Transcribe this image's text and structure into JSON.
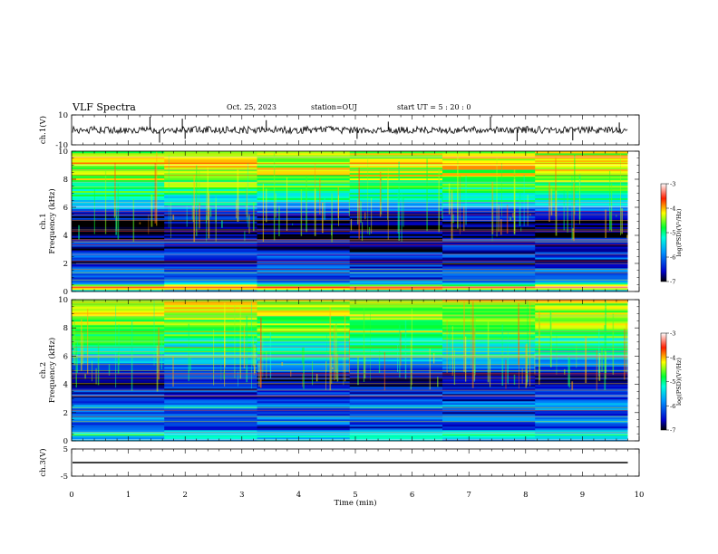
{
  "header": {
    "title": "VLF Spectra",
    "date": "Oct. 25, 2023",
    "station": "station=OUJ",
    "start_ut": "start UT =  5 : 20 : 0"
  },
  "chart_data": [
    {
      "type": "line",
      "panel": "ch1-waveform",
      "ylabel": "ch.1(V)",
      "ylim": [
        -10,
        10
      ],
      "yticks": [
        10,
        -10
      ],
      "xlim": [
        0,
        10
      ],
      "x_end": 9.8,
      "baseline": 0,
      "spikes": [
        {
          "x": 1.38,
          "y": 8.8
        },
        {
          "x": 1.55,
          "y": -8.5
        },
        {
          "x": 1.95,
          "y": 7.5
        },
        {
          "x": 2.0,
          "y": -6.0
        },
        {
          "x": 3.43,
          "y": 6.5
        },
        {
          "x": 5.03,
          "y": -6.0
        },
        {
          "x": 5.58,
          "y": 5.5
        },
        {
          "x": 7.38,
          "y": 9.0
        },
        {
          "x": 7.85,
          "y": -7.5
        },
        {
          "x": 8.83,
          "y": -7.0
        },
        {
          "x": 9.65,
          "y": 5.0
        }
      ]
    },
    {
      "type": "heatmap",
      "panel": "ch1-spectrogram",
      "ylabel": "ch.1\nFrequency (kHz)",
      "ylabel_lines": [
        "ch.1",
        "Frequency (kHz)"
      ],
      "ylim": [
        0,
        10
      ],
      "yticks": [
        0,
        2,
        4,
        6,
        8,
        10
      ],
      "xlim": [
        0,
        10
      ],
      "x_end": 9.8,
      "colorbar": {
        "min": -7,
        "max": -3,
        "ticks": [
          -3,
          -4,
          -5,
          -6,
          -7
        ],
        "label": "log(PSD)(V²/Hz)"
      },
      "profile": [
        {
          "f": 0.0,
          "v": -6.2
        },
        {
          "f": 0.3,
          "v": -3.4
        },
        {
          "f": 0.6,
          "v": -5.6
        },
        {
          "f": 1.0,
          "v": -6.5
        },
        {
          "f": 1.5,
          "v": -6.0
        },
        {
          "f": 2.0,
          "v": -6.6
        },
        {
          "f": 2.5,
          "v": -6.2
        },
        {
          "f": 3.0,
          "v": -6.7
        },
        {
          "f": 3.5,
          "v": -6.3
        },
        {
          "f": 4.0,
          "v": -6.8
        },
        {
          "f": 4.8,
          "v": -6.9
        },
        {
          "f": 5.5,
          "v": -6.4
        },
        {
          "f": 6.2,
          "v": -5.5
        },
        {
          "f": 7.0,
          "v": -5.0
        },
        {
          "f": 8.0,
          "v": -4.5
        },
        {
          "f": 9.0,
          "v": -4.3
        },
        {
          "f": 10.0,
          "v": -4.4
        }
      ]
    },
    {
      "type": "heatmap",
      "panel": "ch2-spectrogram",
      "ylabel": "ch.2\nFrequency (kHz)",
      "ylabel_lines": [
        "ch.2",
        "Frequency (kHz)"
      ],
      "ylim": [
        0,
        10
      ],
      "yticks": [
        0,
        2,
        4,
        6,
        8,
        10
      ],
      "xlim": [
        0,
        10
      ],
      "x_end": 9.8,
      "colorbar": {
        "min": -7,
        "max": -3,
        "ticks": [
          -3,
          -4,
          -5,
          -6,
          -7
        ],
        "label": "log(PSD)(V²/Hz)"
      },
      "profile": [
        {
          "f": 0.0,
          "v": -6.0
        },
        {
          "f": 0.4,
          "v": -5.0
        },
        {
          "f": 1.0,
          "v": -6.5
        },
        {
          "f": 1.5,
          "v": -5.8
        },
        {
          "f": 2.0,
          "v": -6.4
        },
        {
          "f": 2.5,
          "v": -5.6
        },
        {
          "f": 3.0,
          "v": -6.6
        },
        {
          "f": 3.5,
          "v": -6.2
        },
        {
          "f": 4.0,
          "v": -6.7
        },
        {
          "f": 5.0,
          "v": -6.3
        },
        {
          "f": 6.0,
          "v": -5.4
        },
        {
          "f": 7.0,
          "v": -5.0
        },
        {
          "f": 8.0,
          "v": -4.6
        },
        {
          "f": 9.0,
          "v": -4.4
        },
        {
          "f": 10.0,
          "v": -4.4
        }
      ]
    },
    {
      "type": "line",
      "panel": "ch3-waveform",
      "ylabel": "ch.3(V)",
      "ylim": [
        -5,
        5
      ],
      "yticks": [
        5,
        -5
      ],
      "xlim": [
        0,
        10
      ],
      "x_end": 9.8,
      "baseline": 0
    }
  ],
  "xaxis": {
    "label": "Time (min)",
    "ticks": [
      0,
      1,
      2,
      3,
      4,
      5,
      6,
      7,
      8,
      9,
      10
    ]
  }
}
